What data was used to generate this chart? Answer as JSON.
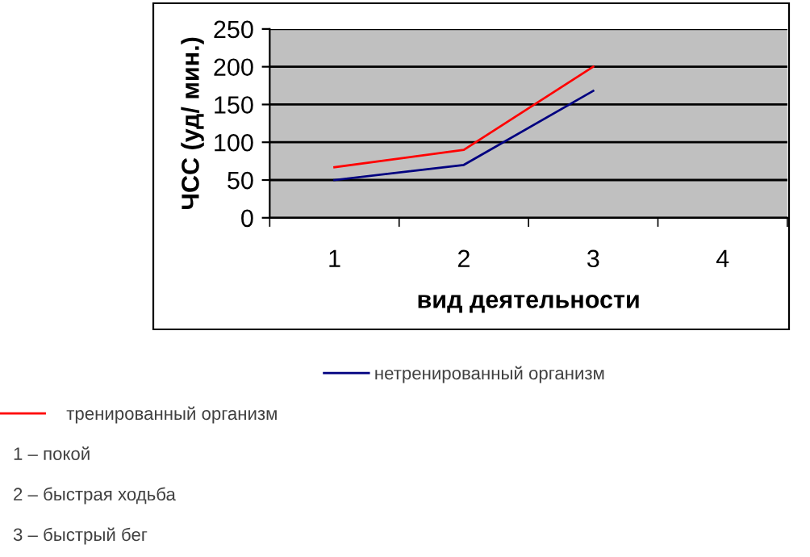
{
  "chart_data": {
    "type": "line",
    "xlabel": "вид деятельности",
    "ylabel": "ЧСС (уд/ мин.)",
    "categories": [
      "1",
      "2",
      "3",
      "4"
    ],
    "series": [
      {
        "name": "нетренированный организм",
        "color": "#000080",
        "values": [
          50,
          70,
          168,
          null
        ]
      },
      {
        "name": "тренированный организм",
        "color": "#ff0000",
        "values": [
          67,
          90,
          200,
          null
        ]
      }
    ],
    "ylim": [
      0,
      250
    ],
    "yticks": [
      0,
      50,
      100,
      150,
      200,
      250
    ],
    "grid": "y",
    "legend": "bottom",
    "marker": "none",
    "line_style": "solid",
    "annotations": [
      "1 – покой",
      "2 – быстрая ходьба",
      "3 – быстрый бег"
    ]
  }
}
